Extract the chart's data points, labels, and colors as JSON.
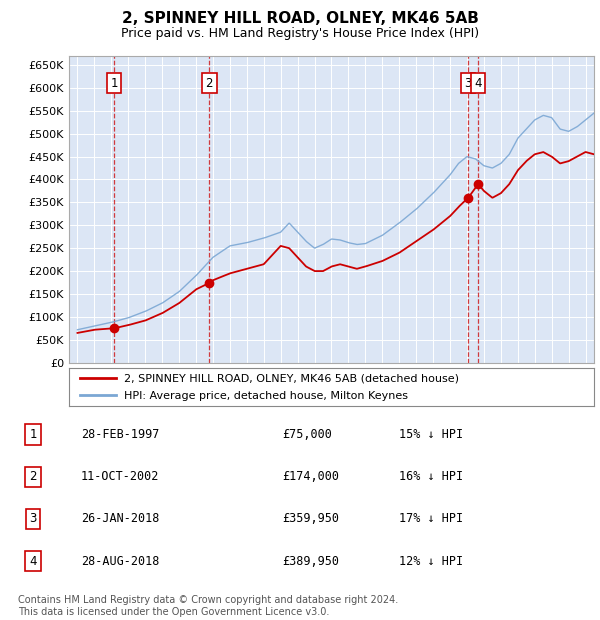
{
  "title": "2, SPINNEY HILL ROAD, OLNEY, MK46 5AB",
  "subtitle": "Price paid vs. HM Land Registry's House Price Index (HPI)",
  "background_color": "#ffffff",
  "plot_bg_color": "#dce6f5",
  "ylim": [
    0,
    670000
  ],
  "yticks": [
    0,
    50000,
    100000,
    150000,
    200000,
    250000,
    300000,
    350000,
    400000,
    450000,
    500000,
    550000,
    600000,
    650000
  ],
  "ytick_labels": [
    "£0",
    "£50K",
    "£100K",
    "£150K",
    "£200K",
    "£250K",
    "£300K",
    "£350K",
    "£400K",
    "£450K",
    "£500K",
    "£550K",
    "£600K",
    "£650K"
  ],
  "xlim_start": 1994.5,
  "xlim_end": 2025.5,
  "sale_dates": [
    1997.16,
    2002.78,
    2018.07,
    2018.66
  ],
  "sale_prices": [
    75000,
    174000,
    359950,
    389950
  ],
  "sale_labels": [
    "1",
    "2",
    "3",
    "4"
  ],
  "red_line_color": "#cc0000",
  "blue_line_color": "#7ba7d4",
  "sale_marker_color": "#cc0000",
  "dashed_line_color": "#cc0000",
  "legend_label_red": "2, SPINNEY HILL ROAD, OLNEY, MK46 5AB (detached house)",
  "legend_label_blue": "HPI: Average price, detached house, Milton Keynes",
  "table_rows": [
    [
      "1",
      "28-FEB-1997",
      "£75,000",
      "15% ↓ HPI"
    ],
    [
      "2",
      "11-OCT-2002",
      "£174,000",
      "16% ↓ HPI"
    ],
    [
      "3",
      "26-JAN-2018",
      "£359,950",
      "17% ↓ HPI"
    ],
    [
      "4",
      "28-AUG-2018",
      "£389,950",
      "12% ↓ HPI"
    ]
  ],
  "footer": "Contains HM Land Registry data © Crown copyright and database right 2024.\nThis data is licensed under the Open Government Licence v3.0."
}
